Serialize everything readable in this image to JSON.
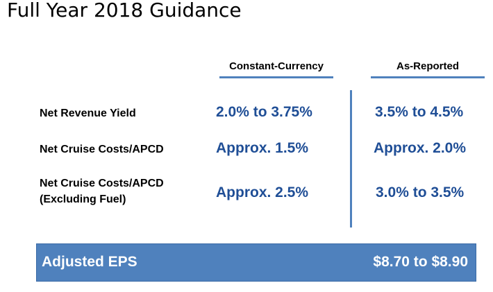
{
  "title": "Full Year 2018 Guidance",
  "columns": {
    "constant_currency": "Constant-Currency",
    "as_reported": "As-Reported"
  },
  "rows": [
    {
      "label_lines": [
        "Net Revenue Yield"
      ],
      "constant_currency": "2.0% to 3.75%",
      "as_reported": "3.5% to 4.5%"
    },
    {
      "label_lines": [
        "Net Cruise Costs/APCD"
      ],
      "constant_currency": "Approx. 1.5%",
      "as_reported": "Approx. 2.0%"
    },
    {
      "label_lines": [
        "Net Cruise Costs/APCD",
        "(Excluding Fuel)"
      ],
      "constant_currency": "Approx. 2.5%",
      "as_reported": "3.0% to 3.5%"
    }
  ],
  "eps": {
    "label": "Adjusted EPS",
    "value": "$8.70 to $8.90"
  },
  "colors": {
    "accent": "#4f81bd",
    "value_text": "#1f4e96"
  }
}
